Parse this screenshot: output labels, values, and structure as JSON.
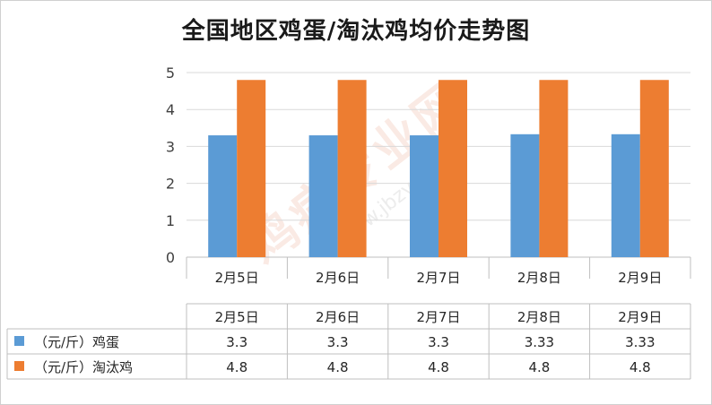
{
  "chart_data": {
    "type": "bar",
    "title": "全国地区鸡蛋/淘汰鸡均价走势图",
    "categories": [
      "2月5日",
      "2月6日",
      "2月7日",
      "2月8日",
      "2月9日"
    ],
    "series": [
      {
        "name": "（元/斤）鸡蛋",
        "values": [
          3.3,
          3.3,
          3.3,
          3.33,
          3.33
        ],
        "color": "#5b9bd5"
      },
      {
        "name": "（元/斤）淘汰鸡",
        "values": [
          4.8,
          4.8,
          4.8,
          4.8,
          4.8
        ],
        "color": "#ed7d31"
      }
    ],
    "table_values": [
      [
        "3.3",
        "3.3",
        "3.3",
        "3.33",
        "3.33"
      ],
      [
        "4.8",
        "4.8",
        "4.8",
        "4.8",
        "4.8"
      ]
    ],
    "yticks": [
      "0",
      "1",
      "2",
      "3",
      "4",
      "5"
    ],
    "ylim": [
      0,
      5
    ],
    "grid": true,
    "legend": "data-table-left"
  },
  "watermark": {
    "brand": "鸡病专业网",
    "url": "www.jbzyw.com"
  }
}
